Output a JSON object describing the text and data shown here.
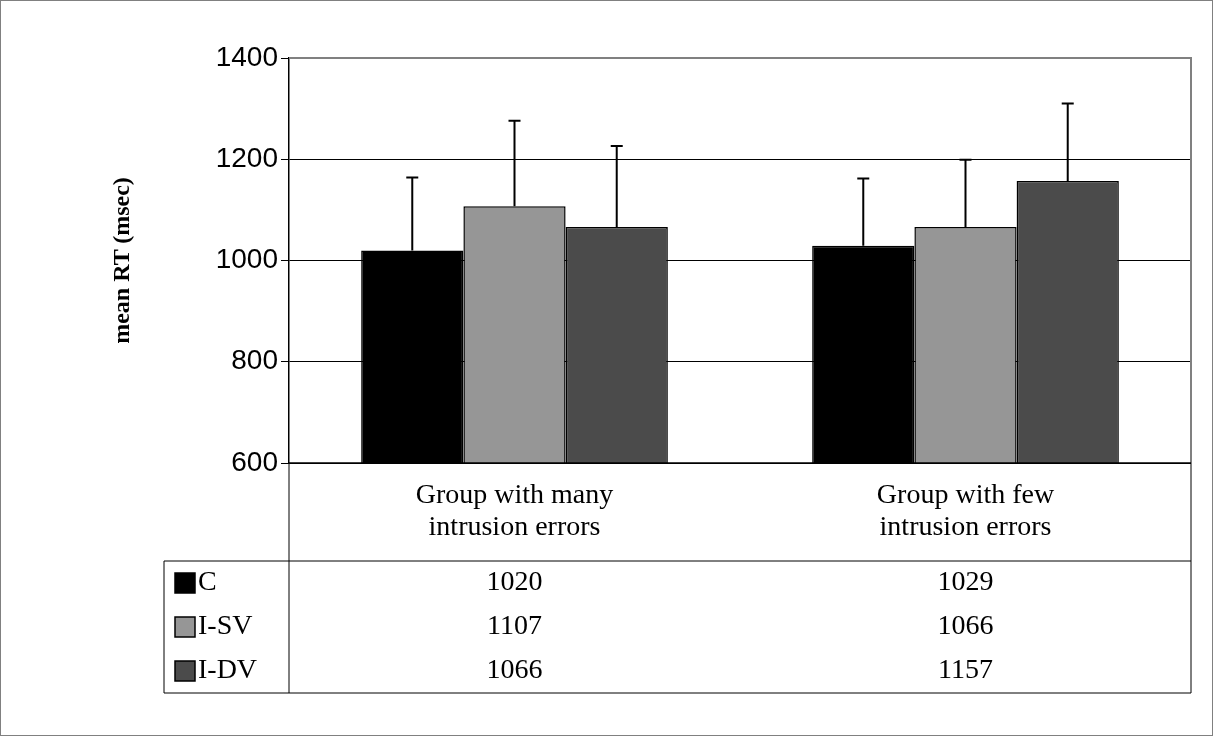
{
  "chart_data": {
    "type": "bar",
    "ylabel": "mean RT (msec)",
    "categories": [
      "Group with many intrusion errors",
      "Group with few intrusion errors"
    ],
    "series": [
      {
        "name": "C",
        "color": "#000000",
        "values": [
          1020,
          1029
        ],
        "errors": [
          [
            1020,
            1164
          ],
          [
            1029,
            1162
          ]
        ]
      },
      {
        "name": "I-SV",
        "color": "#969696",
        "values": [
          1107,
          1066
        ],
        "errors": [
          [
            1107,
            1276
          ],
          [
            1066,
            1199
          ]
        ]
      },
      {
        "name": "I-DV",
        "color": "#4b4b4b",
        "values": [
          1066,
          1157
        ],
        "errors": [
          [
            1066,
            1226
          ],
          [
            1157,
            1310
          ]
        ]
      }
    ],
    "ylim": [
      600,
      1400
    ],
    "yticks": [
      600,
      800,
      1000,
      1200,
      1400
    ],
    "grid": "y",
    "data_labels": true,
    "legend": "bottom"
  }
}
